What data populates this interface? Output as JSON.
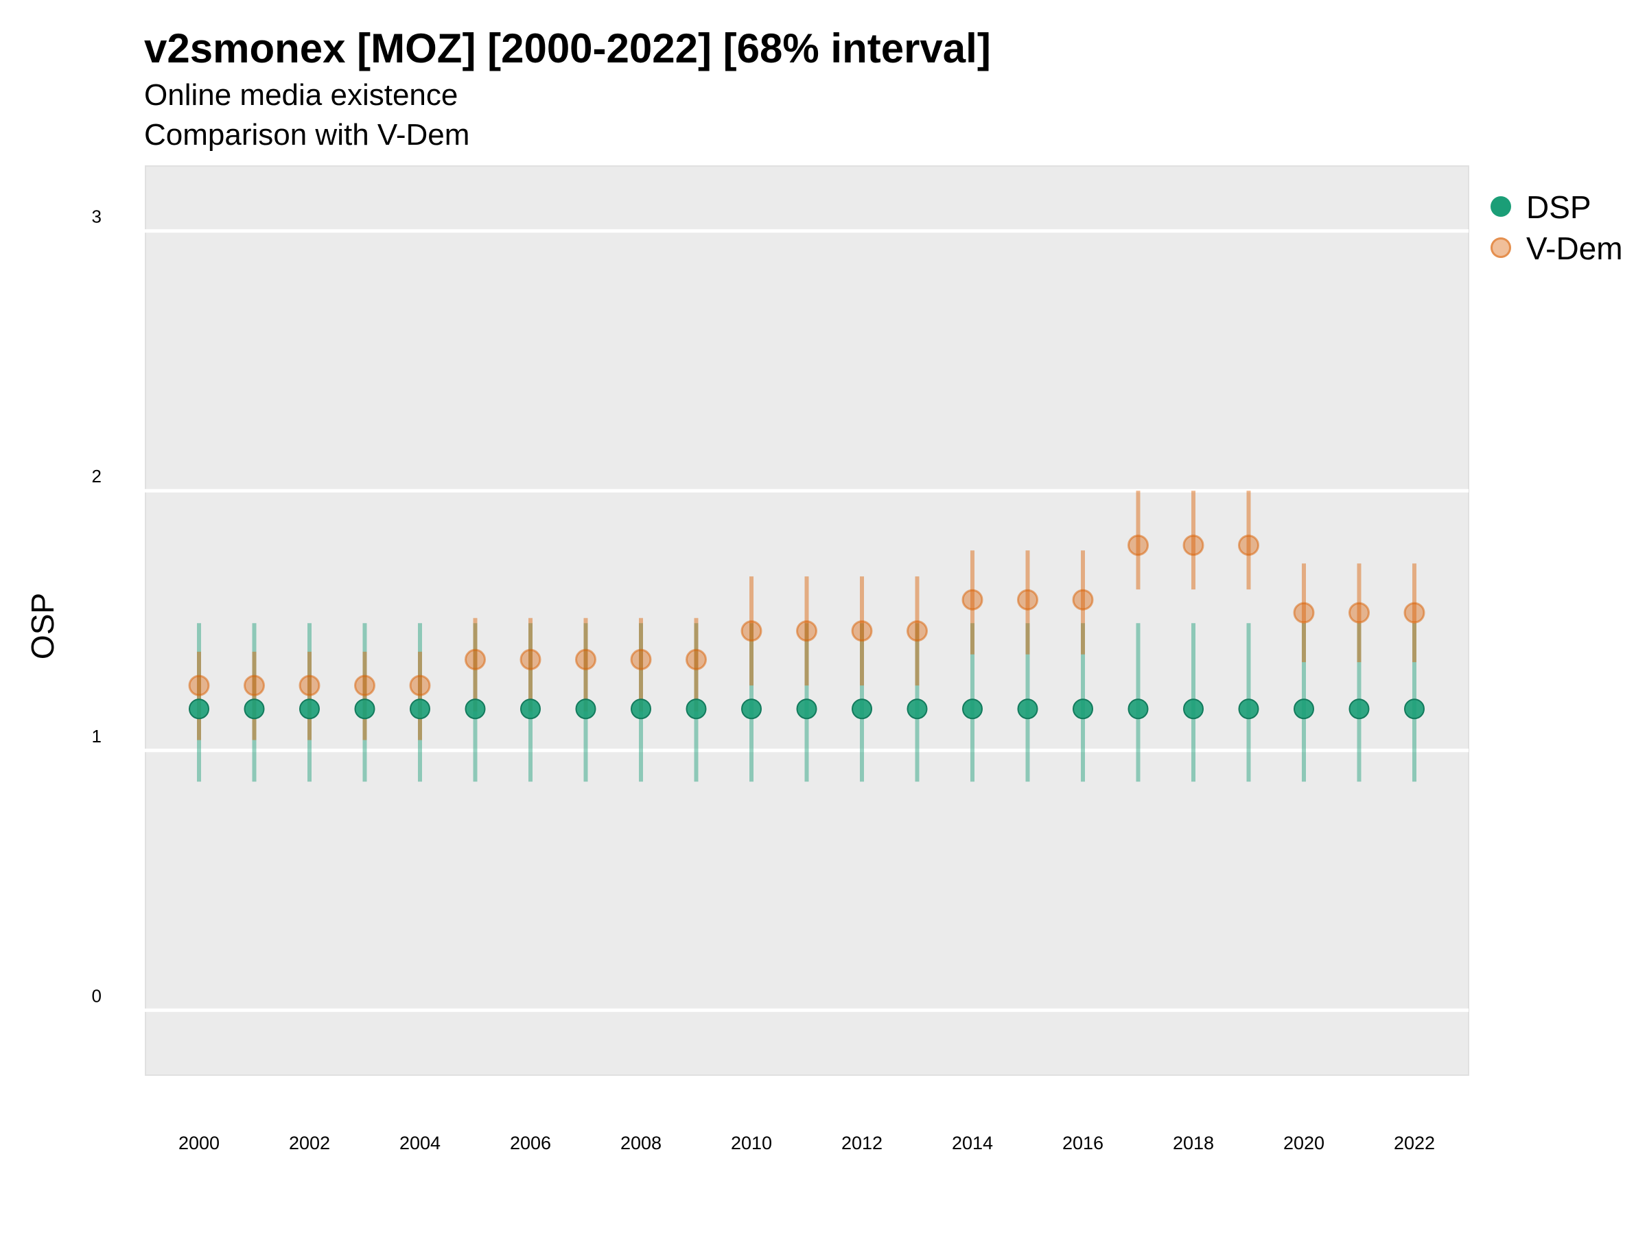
{
  "title": "v2smonex [MOZ] [2000-2022] [68% interval]",
  "subtitle_line1": "Online media existence",
  "subtitle_line2": "Comparison with V-Dem",
  "legend": {
    "dsp_label": "DSP",
    "vdem_label": "V-Dem"
  },
  "colors": {
    "dsp": "#1b9e77",
    "vdem": "#d95f02",
    "panel": "#ebebeb",
    "grid": "#ffffff"
  },
  "chart_data": {
    "type": "scatter",
    "ylabel": "OSP",
    "xlabel": "",
    "ylim": [
      -0.25,
      3.25
    ],
    "y_ticks": [
      0,
      1,
      2,
      3
    ],
    "x_ticks": [
      2000,
      2002,
      2004,
      2006,
      2008,
      2010,
      2012,
      2014,
      2016,
      2018,
      2020,
      2022
    ],
    "x": [
      2000,
      2001,
      2002,
      2003,
      2004,
      2005,
      2006,
      2007,
      2008,
      2009,
      2010,
      2011,
      2012,
      2013,
      2014,
      2015,
      2016,
      2017,
      2018,
      2019,
      2020,
      2021,
      2022
    ],
    "legend_position": "right",
    "grid": true,
    "series": [
      {
        "name": "DSP",
        "values": [
          1.16,
          1.16,
          1.16,
          1.16,
          1.16,
          1.16,
          1.16,
          1.16,
          1.16,
          1.16,
          1.16,
          1.16,
          1.16,
          1.16,
          1.16,
          1.16,
          1.16,
          1.16,
          1.16,
          1.16,
          1.16,
          1.16,
          1.16
        ],
        "lower": [
          0.88,
          0.88,
          0.88,
          0.88,
          0.88,
          0.88,
          0.88,
          0.88,
          0.88,
          0.88,
          0.88,
          0.88,
          0.88,
          0.88,
          0.88,
          0.88,
          0.88,
          0.88,
          0.88,
          0.88,
          0.88,
          0.88,
          0.88
        ],
        "upper": [
          1.49,
          1.49,
          1.49,
          1.49,
          1.49,
          1.49,
          1.49,
          1.49,
          1.49,
          1.49,
          1.49,
          1.49,
          1.49,
          1.49,
          1.49,
          1.49,
          1.49,
          1.49,
          1.49,
          1.49,
          1.49,
          1.49,
          1.49
        ]
      },
      {
        "name": "V-Dem",
        "values": [
          1.25,
          1.25,
          1.25,
          1.25,
          1.25,
          1.35,
          1.35,
          1.35,
          1.35,
          1.35,
          1.46,
          1.46,
          1.46,
          1.46,
          1.58,
          1.58,
          1.58,
          1.79,
          1.79,
          1.79,
          1.53,
          1.53,
          1.53
        ],
        "lower": [
          1.04,
          1.04,
          1.04,
          1.04,
          1.04,
          1.15,
          1.15,
          1.15,
          1.15,
          1.15,
          1.25,
          1.25,
          1.25,
          1.25,
          1.37,
          1.37,
          1.37,
          1.62,
          1.62,
          1.62,
          1.34,
          1.34,
          1.34
        ],
        "upper": [
          1.38,
          1.38,
          1.38,
          1.38,
          1.38,
          1.51,
          1.51,
          1.51,
          1.51,
          1.51,
          1.67,
          1.67,
          1.67,
          1.67,
          1.77,
          1.77,
          1.77,
          2.0,
          2.0,
          2.0,
          1.72,
          1.72,
          1.72
        ]
      }
    ]
  }
}
